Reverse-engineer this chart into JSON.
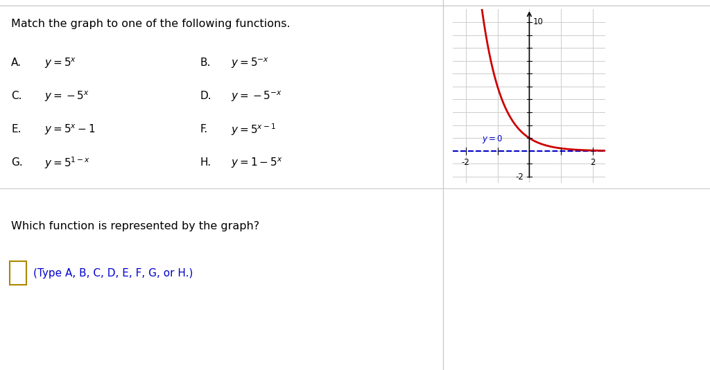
{
  "title_text": "Match the graph to one of the following functions.",
  "options_left": [
    "A.",
    "C.",
    "E.",
    "G."
  ],
  "options_right": [
    "B.",
    "D.",
    "F.",
    "H."
  ],
  "formulas_left": [
    "$y = 5^x$",
    "$y = -5^x$",
    "$y = 5^x - 1$",
    "$y = 5^{1-x}$"
  ],
  "formulas_right": [
    "$y = 5^{-x}$",
    "$y = -5^{-x}$",
    "$y = 5^{x-1}$",
    "$y = 1-5^x$"
  ],
  "bottom_text": "Which function is represented by the graph?",
  "bottom_subtext": "(Type A, B, C, D, E, F, G, or H.)",
  "curve_color": "#cc0000",
  "asymptote_color": "#0000cc",
  "background_color": "#ffffff",
  "divider_color": "#cccccc",
  "border_color": "#cccccc",
  "graph_xlim": [
    -2.4,
    2.4
  ],
  "graph_ylim": [
    -2.5,
    11.0
  ],
  "grid_color": "#cccccc",
  "axis_color": "#000000",
  "tick_label_size": 8.5
}
